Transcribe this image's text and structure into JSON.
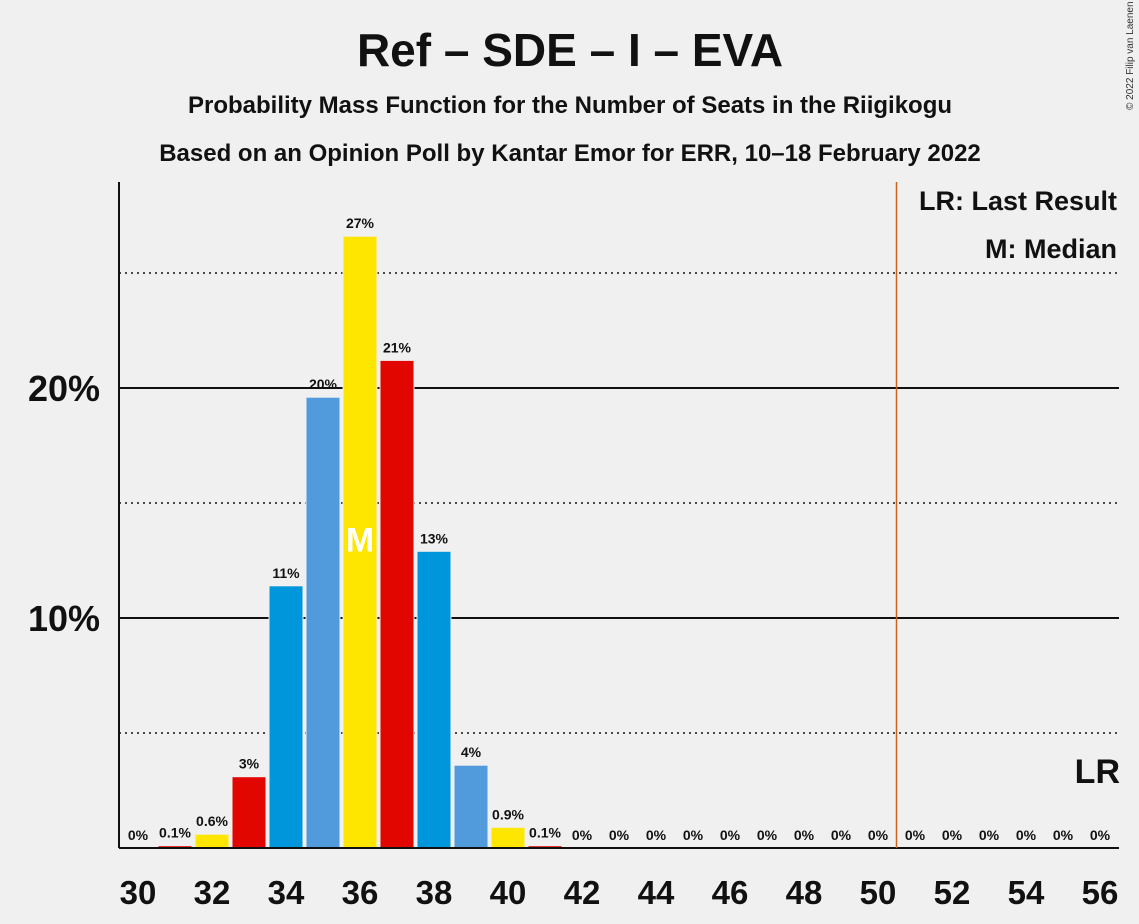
{
  "chart_data": {
    "type": "bar",
    "title": "Ref – SDE – I – EVA",
    "subtitle": "Probability Mass Function for the Number of Seats in the Riigikogu",
    "subtitle2": "Based on an Opinion Poll by Kantar Emor for ERR, 10–18 February 2022",
    "copyright": "© 2022 Filip van Laenen",
    "ylim": [
      0,
      29
    ],
    "y_ticks": [
      {
        "value": 10,
        "label": "10%"
      },
      {
        "value": 20,
        "label": "20%"
      }
    ],
    "y_minor_gridlines": [
      5,
      15,
      25
    ],
    "x_tick_labels": [
      "30",
      "32",
      "34",
      "36",
      "38",
      "40",
      "42",
      "44",
      "46",
      "48",
      "50",
      "52",
      "54",
      "56"
    ],
    "x_tick_values": [
      30,
      32,
      34,
      36,
      38,
      40,
      42,
      44,
      46,
      48,
      50,
      52,
      54,
      56
    ],
    "bars": [
      {
        "x": 30,
        "value": 0,
        "label": "0%",
        "color": "#ffe600"
      },
      {
        "x": 31,
        "value": 0.1,
        "label": "0.1%",
        "color": "#e10600"
      },
      {
        "x": 32,
        "value": 0.6,
        "label": "0.6%",
        "color": "#ffe600"
      },
      {
        "x": 33,
        "value": 3.1,
        "label": "3%",
        "color": "#e10600"
      },
      {
        "x": 34,
        "value": 11.4,
        "label": "11%",
        "color": "#0096dc"
      },
      {
        "x": 35,
        "value": 19.6,
        "label": "20%",
        "color": "#519bdc"
      },
      {
        "x": 36,
        "value": 26.6,
        "label": "27%",
        "color": "#ffe600",
        "median": true
      },
      {
        "x": 37,
        "value": 21.2,
        "label": "21%",
        "color": "#e10600"
      },
      {
        "x": 38,
        "value": 12.9,
        "label": "13%",
        "color": "#0096dc"
      },
      {
        "x": 39,
        "value": 3.6,
        "label": "4%",
        "color": "#519bdc"
      },
      {
        "x": 40,
        "value": 0.9,
        "label": "0.9%",
        "color": "#ffe600"
      },
      {
        "x": 41,
        "value": 0.1,
        "label": "0.1%",
        "color": "#e10600"
      },
      {
        "x": 42,
        "value": 0,
        "label": "0%",
        "color": "#0096dc"
      },
      {
        "x": 43,
        "value": 0,
        "label": "0%",
        "color": "#519bdc"
      },
      {
        "x": 44,
        "value": 0,
        "label": "0%",
        "color": "#ffe600"
      },
      {
        "x": 45,
        "value": 0,
        "label": "0%",
        "color": "#e10600"
      },
      {
        "x": 46,
        "value": 0,
        "label": "0%",
        "color": "#0096dc"
      },
      {
        "x": 47,
        "value": 0,
        "label": "0%",
        "color": "#519bdc"
      },
      {
        "x": 48,
        "value": 0,
        "label": "0%",
        "color": "#ffe600"
      },
      {
        "x": 49,
        "value": 0,
        "label": "0%",
        "color": "#e10600"
      },
      {
        "x": 50,
        "value": 0,
        "label": "0%",
        "color": "#0096dc"
      },
      {
        "x": 51,
        "value": 0,
        "label": "0%",
        "color": "#519bdc"
      },
      {
        "x": 52,
        "value": 0,
        "label": "0%",
        "color": "#ffe600"
      },
      {
        "x": 53,
        "value": 0,
        "label": "0%",
        "color": "#e10600"
      },
      {
        "x": 54,
        "value": 0,
        "label": "0%",
        "color": "#0096dc"
      },
      {
        "x": 55,
        "value": 0,
        "label": "0%",
        "color": "#519bdc"
      },
      {
        "x": 56,
        "value": 0,
        "label": "0%",
        "color": "#ffe600"
      }
    ],
    "median_seats": 36,
    "median_marker": "M",
    "last_result_seats": 50.5,
    "last_result_marker": "LR",
    "last_result_line_color": "#c8641e",
    "legend": [
      "LR: Last Result",
      "M: Median"
    ],
    "legend_placement": "top-right"
  }
}
